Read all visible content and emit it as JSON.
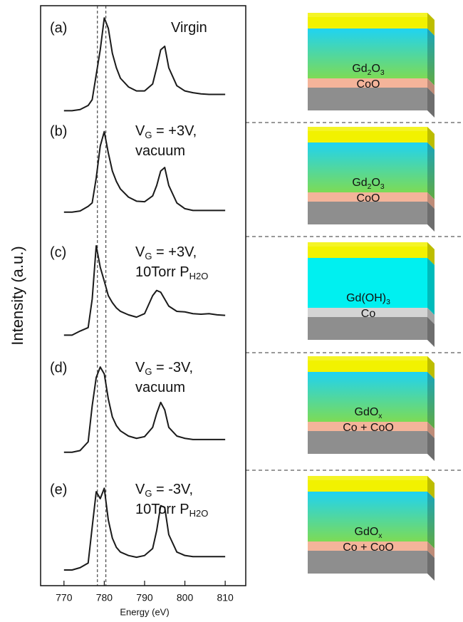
{
  "chart_data": {
    "type": "line",
    "xlabel": "Energy (eV)",
    "ylabel": "Intensity (a.u.)",
    "xlim": [
      764.2,
      815.1
    ],
    "ylim": [
      0,
      10
    ],
    "xticks": [
      770,
      780,
      790,
      800,
      810
    ],
    "vlines": [
      778.3,
      780.4
    ],
    "x": [
      770,
      772,
      774,
      776,
      777,
      778,
      779,
      780,
      781,
      782,
      783,
      784,
      786,
      788,
      790,
      792,
      793,
      794,
      795,
      796,
      798,
      800,
      802,
      804,
      806,
      808,
      810
    ],
    "series": [
      {
        "label": "(a)",
        "color": "#1a1a1a",
        "condition": [
          [
            {
              "text": "Virgin"
            }
          ]
        ],
        "values": [
          8.19,
          8.19,
          8.21,
          8.28,
          8.38,
          8.81,
          9.24,
          9.79,
          9.61,
          9.18,
          8.93,
          8.75,
          8.6,
          8.53,
          8.53,
          8.65,
          8.93,
          9.24,
          9.3,
          8.93,
          8.62,
          8.53,
          8.5,
          8.48,
          8.47,
          8.47,
          8.47
        ]
      },
      {
        "label": "(b)",
        "color": "#1a1a1a",
        "condition": [
          [
            {
              "text": "V"
            },
            {
              "text": "G",
              "sub": true
            },
            {
              "text": " = +3V,"
            }
          ],
          [
            {
              "text": "vacuum"
            }
          ]
        ],
        "values": [
          6.44,
          6.44,
          6.46,
          6.54,
          6.6,
          7.03,
          7.58,
          7.83,
          7.46,
          7.15,
          6.97,
          6.84,
          6.7,
          6.63,
          6.62,
          6.72,
          6.9,
          7.15,
          7.21,
          6.9,
          6.6,
          6.5,
          6.47,
          6.47,
          6.47,
          6.47,
          6.47
        ]
      },
      {
        "label": "(c)",
        "color": "#1a1a1a",
        "condition": [
          [
            {
              "text": "V"
            },
            {
              "text": "G",
              "sub": true
            },
            {
              "text": " = +3V,"
            }
          ],
          [
            {
              "text": "10Torr P"
            },
            {
              "text": "H2O",
              "sub": true
            }
          ]
        ],
        "values": [
          4.32,
          4.32,
          4.39,
          4.45,
          4.94,
          5.86,
          5.49,
          5.25,
          5.0,
          4.88,
          4.79,
          4.73,
          4.67,
          4.63,
          4.69,
          5.0,
          5.09,
          5.06,
          4.94,
          4.82,
          4.73,
          4.72,
          4.69,
          4.68,
          4.69,
          4.67,
          4.66
        ]
      },
      {
        "label": "(d)",
        "color": "#1a1a1a",
        "condition": [
          [
            {
              "text": "V"
            },
            {
              "text": "G",
              "sub": true
            },
            {
              "text": " = -3V,"
            }
          ],
          [
            {
              "text": "vacuum"
            }
          ]
        ],
        "values": [
          2.3,
          2.3,
          2.33,
          2.48,
          3.1,
          3.59,
          3.77,
          3.65,
          3.22,
          2.91,
          2.76,
          2.67,
          2.58,
          2.54,
          2.57,
          2.73,
          2.97,
          3.16,
          3.03,
          2.73,
          2.58,
          2.54,
          2.52,
          2.52,
          2.52,
          2.52,
          2.52
        ]
      },
      {
        "label": "(e)",
        "color": "#1a1a1a",
        "condition": [
          [
            {
              "text": "V"
            },
            {
              "text": "G",
              "sub": true
            },
            {
              "text": " = -3V,"
            }
          ],
          [
            {
              "text": "10Torr P"
            },
            {
              "text": "H2O",
              "sub": true
            }
          ]
        ],
        "values": [
          0.27,
          0.27,
          0.31,
          0.39,
          1.01,
          1.62,
          1.5,
          1.68,
          1.13,
          0.82,
          0.66,
          0.58,
          0.52,
          0.49,
          0.52,
          0.64,
          0.95,
          1.38,
          1.35,
          0.88,
          0.58,
          0.52,
          0.5,
          0.5,
          0.5,
          0.5,
          0.5
        ]
      }
    ]
  },
  "schematics": [
    {
      "film_label": [
        {
          "text": "Gd"
        },
        {
          "text": "2",
          "sub": true
        },
        {
          "text": "O"
        },
        {
          "text": "3",
          "sub": true
        }
      ],
      "interface_label": [
        {
          "text": "CoO"
        }
      ],
      "top_color": "#f2f200",
      "film_color": [
        "#1fd3f2",
        "#7ddb55"
      ],
      "interface_color": "#f4b49a",
      "substrate_color": "#8e8e8e"
    },
    {
      "film_label": [
        {
          "text": "Gd"
        },
        {
          "text": "2",
          "sub": true
        },
        {
          "text": "O"
        },
        {
          "text": "3",
          "sub": true
        }
      ],
      "interface_label": [
        {
          "text": "CoO"
        }
      ],
      "top_color": "#f2f200",
      "film_color": [
        "#1fd3f2",
        "#7ddb55"
      ],
      "interface_color": "#f4b49a",
      "substrate_color": "#8e8e8e"
    },
    {
      "film_label": [
        {
          "text": "Gd(OH)"
        },
        {
          "text": "3",
          "sub": true
        }
      ],
      "interface_label": [
        {
          "text": "Co"
        }
      ],
      "top_color": "#f2f200",
      "film_color": "#00f0f0",
      "interface_color": "#d4d4d4",
      "substrate_color": "#8e8e8e"
    },
    {
      "film_label": [
        {
          "text": "GdO"
        },
        {
          "text": "x",
          "sub": true
        }
      ],
      "interface_label": [
        {
          "text": "Co + CoO"
        }
      ],
      "top_color": "#f2f200",
      "film_color": [
        "#1fd3f2",
        "#7ddb55"
      ],
      "interface_color": "#f4b49a",
      "substrate_color": "#8e8e8e"
    },
    {
      "film_label": [
        {
          "text": "GdO"
        },
        {
          "text": "x",
          "sub": true
        }
      ],
      "interface_label": [
        {
          "text": "Co + CoO"
        }
      ],
      "top_color": "#f2f200",
      "film_color": [
        "#1fd3f2",
        "#7ddb55"
      ],
      "interface_color": "#f4b49a",
      "substrate_color": "#8e8e8e"
    }
  ]
}
